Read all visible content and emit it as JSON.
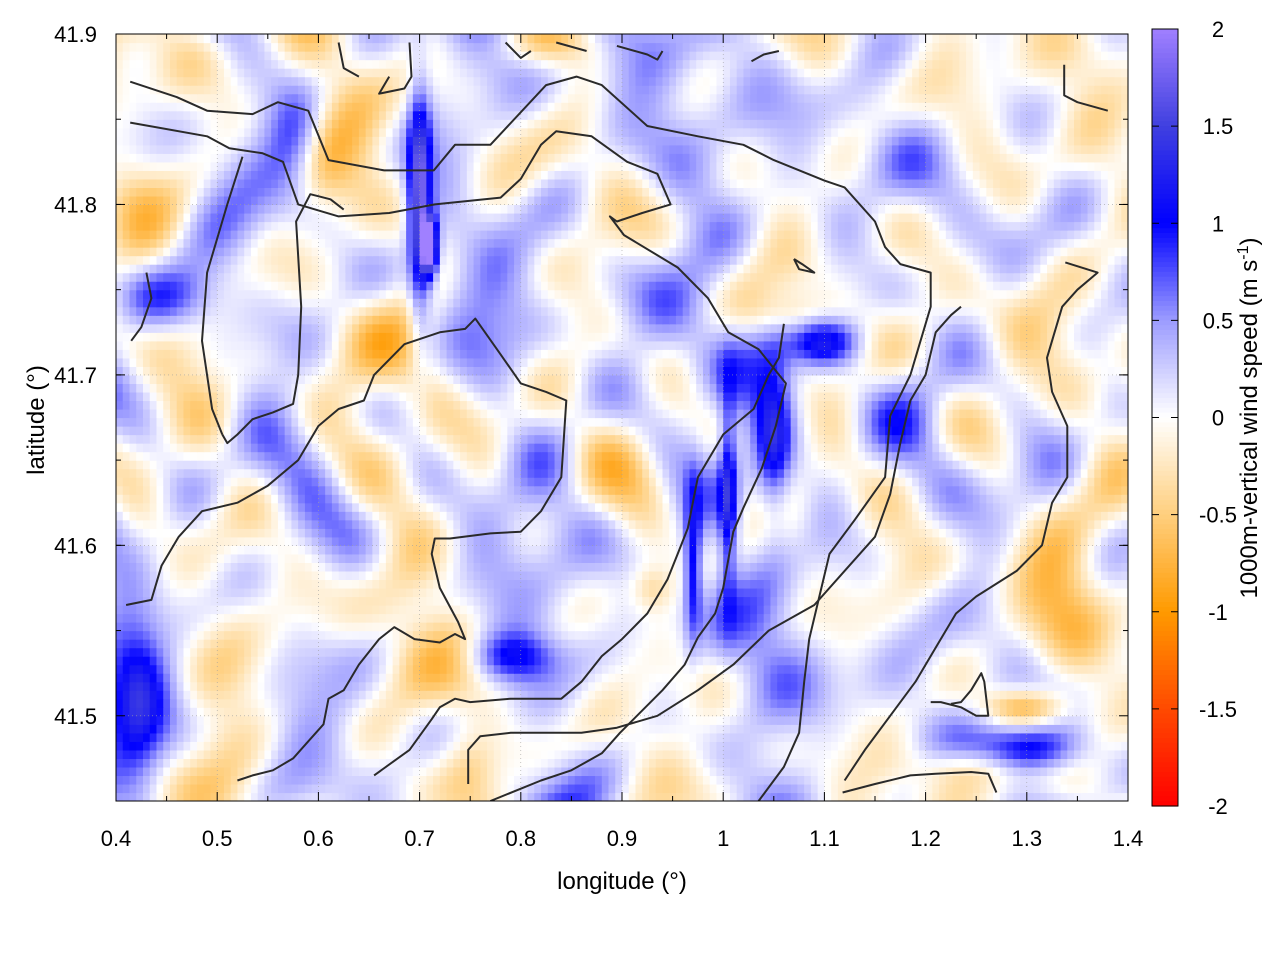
{
  "chart_data": {
    "type": "heatmap",
    "xlabel": "longitude (°)",
    "ylabel": "latitude (°)",
    "colorbar_label": "1000m-vertical wind speed (m s",
    "colorbar_label_sup": "-1",
    "colorbar_label_end": ")",
    "xlim": [
      0.4,
      1.4
    ],
    "ylim": [
      41.45,
      41.9
    ],
    "x_ticks": [
      "0.4",
      "0.5",
      "0.6",
      "0.7",
      "0.8",
      "0.9",
      "1",
      "1.1",
      "1.2",
      "1.3",
      "1.4"
    ],
    "x_tick_values": [
      0.4,
      0.5,
      0.6,
      0.7,
      0.8,
      0.9,
      1.0,
      1.1,
      1.2,
      1.3,
      1.4
    ],
    "y_ticks": [
      "41.5",
      "41.6",
      "41.7",
      "41.8",
      "41.9"
    ],
    "y_tick_values": [
      41.5,
      41.6,
      41.7,
      41.8,
      41.9
    ],
    "clim": [
      -2,
      2
    ],
    "colorbar_ticks": [
      "2",
      "1.5",
      "1",
      "0.5",
      "0",
      "-0.5",
      "-1",
      "-1.5",
      "-2"
    ],
    "colorbar_tick_values": [
      2,
      1.5,
      1,
      0.5,
      0,
      -0.5,
      -1,
      -1.5,
      -2
    ],
    "colormap": [
      {
        "v": -2.0,
        "color": "#ff0000"
      },
      {
        "v": -1.5,
        "color": "#ff4a00"
      },
      {
        "v": -1.0,
        "color": "#ff9a00"
      },
      {
        "v": -0.5,
        "color": "#ffcf7e"
      },
      {
        "v": 0.0,
        "color": "#ffffff"
      },
      {
        "v": 0.5,
        "color": "#9c9cff"
      },
      {
        "v": 1.0,
        "color": "#0000ff"
      },
      {
        "v": 1.5,
        "color": "#4040e0"
      },
      {
        "v": 2.0,
        "color": "#a080ff"
      }
    ],
    "grid": true,
    "features": [
      {
        "lon": 0.7,
        "lat": 41.8,
        "w": 1.6,
        "sx": 0.008,
        "sy": 0.045
      },
      {
        "lon": 0.71,
        "lat": 41.775,
        "w": 2.0,
        "sx": 0.006,
        "sy": 0.012
      },
      {
        "lon": 0.45,
        "lat": 41.745,
        "w": 1.0,
        "sx": 0.04,
        "sy": 0.015
      },
      {
        "lon": 0.58,
        "lat": 41.84,
        "w": 0.7,
        "sx": 0.02,
        "sy": 0.02
      },
      {
        "lon": 1.1,
        "lat": 41.72,
        "w": 1.1,
        "sx": 0.025,
        "sy": 0.01
      },
      {
        "lon": 1.05,
        "lat": 41.66,
        "w": 0.9,
        "sx": 0.012,
        "sy": 0.035
      },
      {
        "lon": 1.005,
        "lat": 41.63,
        "w": 1.0,
        "sx": 0.006,
        "sy": 0.04
      },
      {
        "lon": 0.97,
        "lat": 41.59,
        "w": 1.0,
        "sx": 0.006,
        "sy": 0.03
      },
      {
        "lon": 0.79,
        "lat": 41.535,
        "w": 0.8,
        "sx": 0.03,
        "sy": 0.01
      },
      {
        "lon": 0.42,
        "lat": 41.51,
        "w": 0.8,
        "sx": 0.02,
        "sy": 0.04
      },
      {
        "lon": 1.3,
        "lat": 41.48,
        "w": 1.2,
        "sx": 0.035,
        "sy": 0.01
      },
      {
        "lon": 0.46,
        "lat": 41.59,
        "w": 0.5,
        "sx": 0.03,
        "sy": 0.03
      },
      {
        "lon": 1.3,
        "lat": 41.505,
        "w": -0.9,
        "sx": 0.03,
        "sy": 0.008
      },
      {
        "lon": 1.25,
        "lat": 41.47,
        "w": -0.6,
        "sx": 0.05,
        "sy": 0.01
      },
      {
        "lon": 1.07,
        "lat": 41.735,
        "w": -0.5,
        "sx": 0.03,
        "sy": 0.01
      },
      {
        "lon": 0.6,
        "lat": 41.82,
        "w": -0.4,
        "sx": 0.02,
        "sy": 0.02
      },
      {
        "lon": 0.75,
        "lat": 41.47,
        "w": -0.4,
        "sx": 0.02,
        "sy": 0.015
      },
      {
        "lon": 0.93,
        "lat": 41.575,
        "w": -0.5,
        "sx": 0.015,
        "sy": 0.01
      },
      {
        "lon": 1.34,
        "lat": 41.58,
        "w": -0.5,
        "sx": 0.03,
        "sy": 0.03
      },
      {
        "lon": 0.82,
        "lat": 41.895,
        "w": -0.4,
        "sx": 0.04,
        "sy": 0.01
      }
    ],
    "contours": [
      [
        [
          0.414,
          41.872
        ],
        [
          0.46,
          41.863
        ],
        [
          0.49,
          41.855
        ],
        [
          0.535,
          41.853
        ],
        [
          0.56,
          41.86
        ],
        [
          0.59,
          41.855
        ],
        [
          0.61,
          41.826
        ],
        [
          0.665,
          41.82
        ],
        [
          0.714,
          41.82
        ],
        [
          0.735,
          41.835
        ],
        [
          0.77,
          41.835
        ],
        [
          0.825,
          41.87
        ],
        [
          0.855,
          41.875
        ],
        [
          0.88,
          41.87
        ],
        [
          0.925,
          41.846
        ],
        [
          0.975,
          41.84
        ],
        [
          1.02,
          41.835
        ],
        [
          1.05,
          41.826
        ],
        [
          1.1,
          41.814
        ],
        [
          1.12,
          41.81
        ],
        [
          1.15,
          41.79
        ],
        [
          1.16,
          41.775
        ],
        [
          1.175,
          41.765
        ],
        [
          1.205,
          41.76
        ],
        [
          1.205,
          41.74
        ],
        [
          1.185,
          41.7
        ],
        [
          1.165,
          41.676
        ],
        [
          1.16,
          41.64
        ],
        [
          1.13,
          41.615
        ],
        [
          1.105,
          41.595
        ],
        [
          1.085,
          41.545
        ],
        [
          1.08,
          41.52
        ],
        [
          1.075,
          41.49
        ],
        [
          1.06,
          41.47
        ],
        [
          1.035,
          41.45
        ]
      ],
      [
        [
          0.414,
          41.848
        ],
        [
          0.49,
          41.84
        ],
        [
          0.512,
          41.833
        ],
        [
          0.545,
          41.83
        ],
        [
          0.565,
          41.825
        ],
        [
          0.58,
          41.8
        ],
        [
          0.62,
          41.793
        ],
        [
          0.67,
          41.795
        ],
        [
          0.715,
          41.8
        ],
        [
          0.78,
          41.804
        ],
        [
          0.8,
          41.815
        ],
        [
          0.82,
          41.835
        ],
        [
          0.835,
          41.843
        ],
        [
          0.87,
          41.84
        ],
        [
          0.905,
          41.825
        ],
        [
          0.935,
          41.818
        ],
        [
          0.948,
          41.8
        ],
        [
          0.92,
          41.795
        ],
        [
          0.895,
          41.79
        ],
        [
          0.888,
          41.793
        ],
        [
          0.902,
          41.782
        ],
        [
          0.955,
          41.763
        ],
        [
          0.985,
          41.745
        ],
        [
          1.005,
          41.725
        ],
        [
          1.035,
          41.715
        ],
        [
          1.062,
          41.695
        ],
        [
          1.052,
          41.67
        ],
        [
          1.038,
          41.645
        ],
        [
          1.02,
          41.622
        ],
        [
          1.01,
          41.608
        ],
        [
          1.0,
          41.575
        ],
        [
          0.992,
          41.56
        ],
        [
          0.975,
          41.546
        ],
        [
          0.962,
          41.53
        ],
        [
          0.94,
          41.515
        ],
        [
          0.898,
          41.49
        ],
        [
          0.88,
          41.478
        ],
        [
          0.85,
          41.468
        ],
        [
          0.82,
          41.462
        ],
        [
          0.77,
          41.45
        ]
      ],
      [
        [
          0.41,
          41.565
        ],
        [
          0.435,
          41.568
        ],
        [
          0.445,
          41.588
        ],
        [
          0.462,
          41.605
        ],
        [
          0.485,
          41.62
        ],
        [
          0.52,
          41.625
        ],
        [
          0.55,
          41.635
        ],
        [
          0.58,
          41.65
        ],
        [
          0.6,
          41.67
        ],
        [
          0.62,
          41.68
        ],
        [
          0.645,
          41.685
        ],
        [
          0.655,
          41.7
        ],
        [
          0.685,
          41.718
        ],
        [
          0.72,
          41.725
        ],
        [
          0.745,
          41.727
        ],
        [
          0.755,
          41.733
        ],
        [
          0.78,
          41.712
        ],
        [
          0.8,
          41.695
        ],
        [
          0.825,
          41.69
        ],
        [
          0.845,
          41.685
        ],
        [
          0.84,
          41.64
        ],
        [
          0.82,
          41.62
        ],
        [
          0.8,
          41.608
        ],
        [
          0.77,
          41.607
        ],
        [
          0.73,
          41.604
        ],
        [
          0.715,
          41.604
        ],
        [
          0.712,
          41.595
        ],
        [
          0.72,
          41.575
        ],
        [
          0.738,
          41.555
        ],
        [
          0.745,
          41.545
        ],
        [
          0.735,
          41.548
        ],
        [
          0.72,
          41.543
        ],
        [
          0.695,
          41.545
        ],
        [
          0.675,
          41.552
        ],
        [
          0.66,
          41.545
        ],
        [
          0.64,
          41.53
        ],
        [
          0.625,
          41.515
        ],
        [
          0.61,
          41.51
        ],
        [
          0.605,
          41.495
        ],
        [
          0.59,
          41.485
        ],
        [
          0.575,
          41.475
        ],
        [
          0.555,
          41.468
        ],
        [
          0.535,
          41.465
        ],
        [
          0.52,
          41.462
        ]
      ],
      [
        [
          0.655,
          41.465
        ],
        [
          0.69,
          41.48
        ],
        [
          0.712,
          41.498
        ],
        [
          0.72,
          41.505
        ],
        [
          0.735,
          41.51
        ],
        [
          0.75,
          41.508
        ],
        [
          0.79,
          41.51
        ],
        [
          0.84,
          41.51
        ],
        [
          0.86,
          41.52
        ],
        [
          0.88,
          41.535
        ],
        [
          0.9,
          41.545
        ],
        [
          0.925,
          41.56
        ],
        [
          0.945,
          41.58
        ],
        [
          0.955,
          41.595
        ],
        [
          0.965,
          41.61
        ],
        [
          0.97,
          41.625
        ],
        [
          0.975,
          41.64
        ],
        [
          0.985,
          41.65
        ],
        [
          1.0,
          41.665
        ],
        [
          1.01,
          41.67
        ],
        [
          1.03,
          41.68
        ],
        [
          1.045,
          41.7
        ],
        [
          1.055,
          41.71
        ],
        [
          1.06,
          41.73
        ]
      ],
      [
        [
          0.748,
          41.46
        ],
        [
          0.748,
          41.48
        ],
        [
          0.76,
          41.488
        ],
        [
          0.79,
          41.49
        ],
        [
          0.825,
          41.49
        ],
        [
          0.86,
          41.49
        ],
        [
          0.895,
          41.493
        ],
        [
          0.935,
          41.5
        ],
        [
          0.975,
          41.515
        ],
        [
          1.01,
          41.53
        ],
        [
          1.045,
          41.55
        ],
        [
          1.09,
          41.565
        ],
        [
          1.12,
          41.585
        ],
        [
          1.15,
          41.605
        ],
        [
          1.165,
          41.63
        ],
        [
          1.175,
          41.66
        ],
        [
          1.185,
          41.685
        ],
        [
          1.2,
          41.7
        ],
        [
          1.21,
          41.725
        ],
        [
          1.225,
          41.735
        ],
        [
          1.235,
          41.74
        ]
      ],
      [
        [
          1.338,
          41.766
        ],
        [
          1.37,
          41.76
        ],
        [
          1.35,
          41.75
        ],
        [
          1.335,
          41.74
        ],
        [
          1.32,
          41.71
        ],
        [
          1.325,
          41.69
        ],
        [
          1.34,
          41.67
        ],
        [
          1.34,
          41.64
        ],
        [
          1.325,
          41.625
        ],
        [
          1.315,
          41.6
        ],
        [
          1.29,
          41.585
        ],
        [
          1.25,
          41.57
        ],
        [
          1.23,
          41.56
        ],
        [
          1.21,
          41.54
        ],
        [
          1.19,
          41.52
        ],
        [
          1.165,
          41.5
        ],
        [
          1.14,
          41.48
        ],
        [
          1.12,
          41.462
        ]
      ],
      [
        [
          1.118,
          41.455
        ],
        [
          1.15,
          41.46
        ],
        [
          1.185,
          41.465
        ],
        [
          1.21,
          41.466
        ],
        [
          1.245,
          41.467
        ],
        [
          1.262,
          41.466
        ],
        [
          1.27,
          41.455
        ]
      ],
      [
        [
          0.43,
          41.76
        ],
        [
          0.435,
          41.745
        ],
        [
          0.425,
          41.728
        ],
        [
          0.415,
          41.72
        ]
      ],
      [
        [
          0.505,
          41.665
        ],
        [
          0.51,
          41.66
        ],
        [
          0.52,
          41.665
        ],
        [
          0.535,
          41.674
        ],
        [
          0.555,
          41.678
        ],
        [
          0.575,
          41.683
        ],
        [
          0.58,
          41.7
        ],
        [
          0.583,
          41.74
        ],
        [
          0.578,
          41.79
        ],
        [
          0.592,
          41.806
        ],
        [
          0.612,
          41.803
        ],
        [
          0.625,
          41.797
        ]
      ],
      [
        [
          0.505,
          41.665
        ],
        [
          0.495,
          41.68
        ],
        [
          0.485,
          41.72
        ],
        [
          0.49,
          41.76
        ],
        [
          0.51,
          41.8
        ],
        [
          0.525,
          41.828
        ]
      ],
      [
        [
          1.07,
          41.768
        ],
        [
          1.075,
          41.762
        ],
        [
          1.09,
          41.76
        ],
        [
          1.078,
          41.765
        ],
        [
          1.07,
          41.768
        ]
      ],
      [
        [
          0.62,
          41.895
        ],
        [
          0.625,
          41.88
        ],
        [
          0.64,
          41.875
        ]
      ],
      [
        [
          0.69,
          41.895
        ],
        [
          0.692,
          41.875
        ],
        [
          0.685,
          41.868
        ],
        [
          0.66,
          41.865
        ],
        [
          0.67,
          41.875
        ]
      ],
      [
        [
          0.785,
          41.895
        ],
        [
          0.8,
          41.886
        ],
        [
          0.81,
          41.89
        ]
      ],
      [
        [
          0.835,
          41.895
        ],
        [
          0.865,
          41.89
        ]
      ],
      [
        [
          0.895,
          41.893
        ],
        [
          0.925,
          41.888
        ],
        [
          0.935,
          41.885
        ],
        [
          0.94,
          41.89
        ]
      ],
      [
        [
          1.028,
          41.884
        ],
        [
          1.04,
          41.888
        ],
        [
          1.055,
          41.89
        ]
      ],
      [
        [
          1.337,
          41.882
        ],
        [
          1.337,
          41.864
        ],
        [
          1.35,
          41.86
        ],
        [
          1.38,
          41.855
        ]
      ],
      [
        [
          1.205,
          41.508
        ],
        [
          1.215,
          41.508
        ],
        [
          1.235,
          41.505
        ],
        [
          1.25,
          41.5
        ],
        [
          1.262,
          41.5
        ],
        [
          1.258,
          41.52
        ],
        [
          1.255,
          41.525
        ],
        [
          1.245,
          41.515
        ],
        [
          1.235,
          41.508
        ],
        [
          1.225,
          41.507
        ]
      ]
    ]
  }
}
